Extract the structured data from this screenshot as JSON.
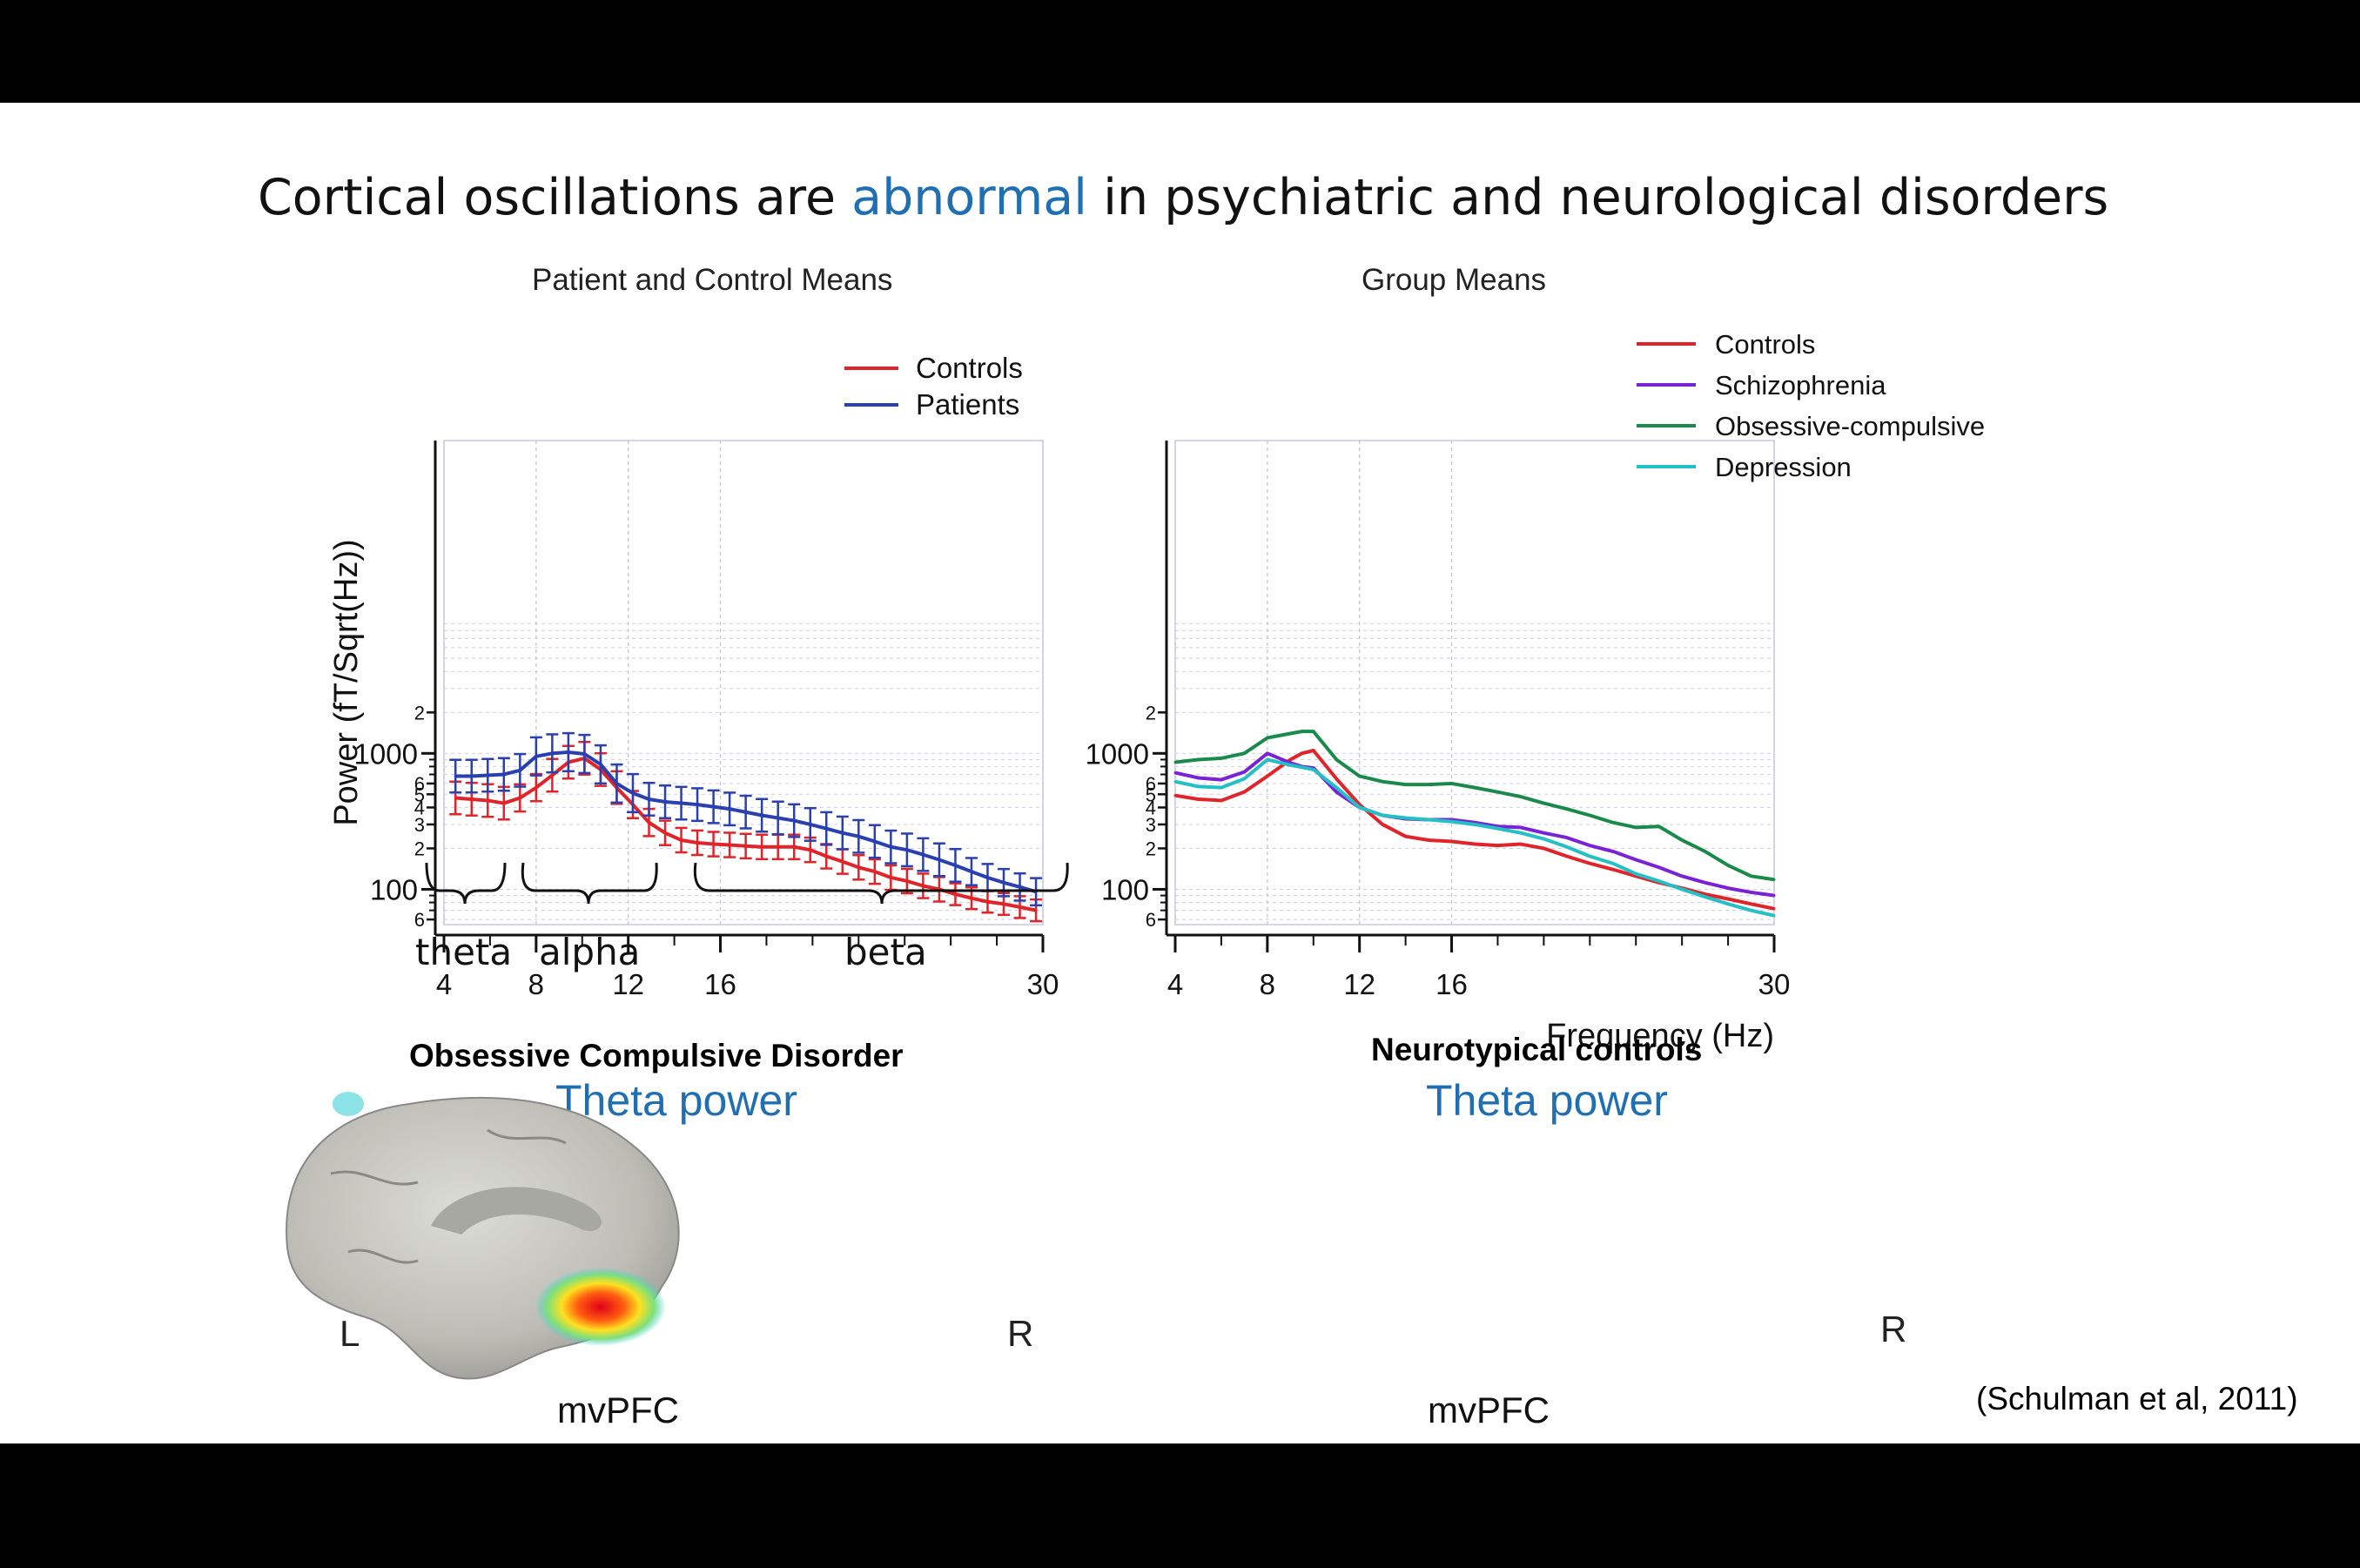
{
  "slide": {
    "title_pre": "Cortical oscillations are ",
    "title_highlight": "abnormal",
    "title_post": " in psychiatric and neurological disorders",
    "citation": "(Schulman et al, 2011)"
  },
  "bands": [
    {
      "label": "theta"
    },
    {
      "label": "alpha"
    },
    {
      "label": "beta"
    }
  ],
  "brains": {
    "ocd": {
      "title": "Obsessive Compulsive Disorder",
      "subtitle": "Theta power",
      "left_label": "L",
      "right_label": "R",
      "pointer_label": "mvPFC"
    },
    "controls": {
      "title": "Neurotypical controls",
      "subtitle": "Theta power",
      "right_label": "R",
      "pointer_label": "mvPFC"
    }
  },
  "colors": {
    "controls": "#e0242a",
    "patients": "#2a3fb0",
    "schizophrenia": "#7a22d6",
    "ocd": "#1a8a4a",
    "depression": "#25bfc6",
    "highlight": "#1f6fb2"
  },
  "chart_data": [
    {
      "type": "line",
      "title": "Patient and Control Means",
      "ylabel": "Power (fT/Sqrt(Hz))",
      "xlabel": "",
      "y_scale": "log",
      "xlim": [
        4,
        30
      ],
      "ylim": [
        55,
        200000
      ],
      "x_ticks": [
        4,
        8,
        12,
        16,
        30
      ],
      "y_major_ticks": [
        {
          "v": 100,
          "label": "100"
        },
        {
          "v": 1000,
          "label": "1000"
        }
      ],
      "y_minor_ticks": [
        {
          "v": 60,
          "label": "6"
        },
        {
          "v": 200,
          "label": "2"
        },
        {
          "v": 300,
          "label": "3"
        },
        {
          "v": 400,
          "label": "4"
        },
        {
          "v": 500,
          "label": "5"
        },
        {
          "v": 600,
          "label": "6"
        },
        {
          "v": 2000,
          "label": "2"
        }
      ],
      "grid": true,
      "error_bars": true,
      "legend_position": "top-right",
      "x": [
        4.5,
        5.2,
        5.9,
        6.6,
        7.3,
        8.0,
        8.7,
        9.4,
        10.1,
        10.8,
        11.5,
        12.2,
        12.9,
        13.6,
        14.3,
        15.0,
        15.7,
        16.4,
        17.1,
        17.8,
        18.5,
        19.2,
        19.9,
        20.6,
        21.3,
        22.0,
        22.7,
        23.4,
        24.1,
        24.8,
        25.5,
        26.2,
        26.9,
        27.6,
        28.3,
        29.0,
        29.7
      ],
      "series": [
        {
          "name": "Controls",
          "color": "#e0242a",
          "values": [
            470,
            460,
            450,
            430,
            470,
            560,
            690,
            860,
            920,
            760,
            560,
            420,
            310,
            260,
            230,
            220,
            215,
            212,
            208,
            205,
            205,
            205,
            195,
            175,
            160,
            145,
            135,
            122,
            115,
            106,
            100,
            92,
            86,
            81,
            78,
            74,
            70
          ],
          "err": [
            0.12,
            0.12,
            0.12,
            0.12,
            0.1,
            0.1,
            0.12,
            0.12,
            0.12,
            0.12,
            0.12,
            0.1,
            0.1,
            0.09,
            0.09,
            0.09,
            0.09,
            0.09,
            0.09,
            0.09,
            0.09,
            0.09,
            0.09,
            0.09,
            0.09,
            0.09,
            0.09,
            0.09,
            0.09,
            0.09,
            0.09,
            0.08,
            0.08,
            0.08,
            0.08,
            0.08,
            0.08
          ]
        },
        {
          "name": "Patients",
          "color": "#2a3fb0",
          "values": [
            680,
            680,
            690,
            700,
            750,
            950,
            1000,
            1020,
            990,
            830,
            600,
            510,
            460,
            440,
            430,
            420,
            405,
            390,
            370,
            350,
            335,
            320,
            300,
            280,
            260,
            245,
            225,
            205,
            195,
            180,
            165,
            150,
            135,
            122,
            112,
            104,
            96
          ],
          "err": [
            0.12,
            0.12,
            0.12,
            0.12,
            0.12,
            0.14,
            0.14,
            0.14,
            0.14,
            0.14,
            0.14,
            0.14,
            0.12,
            0.12,
            0.12,
            0.12,
            0.12,
            0.12,
            0.12,
            0.12,
            0.12,
            0.12,
            0.12,
            0.12,
            0.12,
            0.12,
            0.12,
            0.12,
            0.12,
            0.12,
            0.12,
            0.12,
            0.1,
            0.1,
            0.1,
            0.1,
            0.1
          ]
        }
      ]
    },
    {
      "type": "line",
      "title": "Group Means",
      "xlabel": "Frequency (Hz)",
      "ylabel": "",
      "y_scale": "log",
      "xlim": [
        4,
        30
      ],
      "ylim": [
        55,
        200000
      ],
      "x_ticks": [
        4,
        8,
        12,
        16,
        30
      ],
      "y_major_ticks": [
        {
          "v": 100,
          "label": "100"
        },
        {
          "v": 1000,
          "label": "1000"
        }
      ],
      "y_minor_ticks": [
        {
          "v": 60,
          "label": "6"
        },
        {
          "v": 200,
          "label": "2"
        },
        {
          "v": 300,
          "label": "3"
        },
        {
          "v": 400,
          "label": "4"
        },
        {
          "v": 500,
          "label": "5"
        },
        {
          "v": 600,
          "label": "6"
        },
        {
          "v": 2000,
          "label": "2"
        }
      ],
      "grid": true,
      "legend_position": "top-right",
      "x": [
        4,
        5,
        6,
        7,
        8,
        9,
        9.5,
        10,
        11,
        12,
        13,
        14,
        15,
        16,
        17,
        18,
        19,
        20,
        21,
        22,
        23,
        24,
        25,
        26,
        27,
        28,
        29,
        30
      ],
      "series": [
        {
          "name": "Controls",
          "color": "#e0242a",
          "values": [
            490,
            460,
            450,
            520,
            680,
            900,
            1000,
            1050,
            650,
            420,
            300,
            245,
            230,
            225,
            215,
            210,
            215,
            200,
            175,
            155,
            140,
            125,
            112,
            102,
            92,
            85,
            78,
            72
          ]
        },
        {
          "name": "Schizophrenia",
          "color": "#7a22d6",
          "values": [
            720,
            660,
            640,
            730,
            1000,
            850,
            800,
            780,
            520,
            400,
            350,
            330,
            325,
            325,
            310,
            290,
            285,
            260,
            240,
            210,
            190,
            165,
            145,
            125,
            112,
            102,
            95,
            90
          ]
        },
        {
          "name": "Obsessive-compulsive",
          "color": "#1a8a4a",
          "values": [
            860,
            900,
            920,
            1000,
            1300,
            1400,
            1450,
            1450,
            900,
            680,
            620,
            590,
            590,
            600,
            560,
            520,
            480,
            430,
            390,
            350,
            310,
            285,
            290,
            230,
            190,
            150,
            125,
            118
          ]
        },
        {
          "name": "Depression",
          "color": "#25bfc6",
          "values": [
            620,
            570,
            560,
            650,
            900,
            820,
            790,
            760,
            560,
            400,
            350,
            335,
            325,
            315,
            300,
            280,
            260,
            235,
            205,
            175,
            155,
            130,
            115,
            100,
            88,
            78,
            70,
            64
          ]
        }
      ]
    }
  ]
}
